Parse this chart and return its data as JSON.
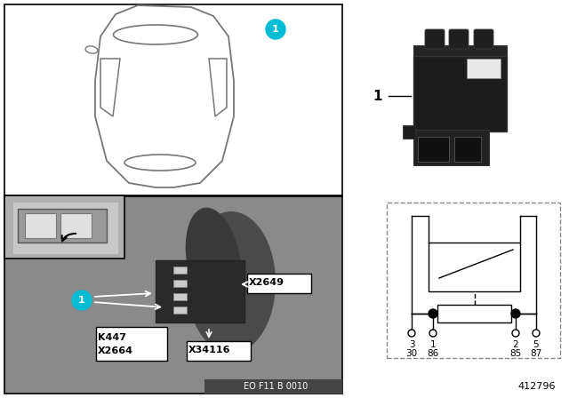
{
  "bg_color": "#ffffff",
  "white": "#ffffff",
  "black": "#000000",
  "photo_gray": "#8a8a8a",
  "photo_dark": "#606060",
  "inset_gray": "#b0b0b0",
  "teal": "#00bcd4",
  "diagram_id": "412796",
  "doc_id": "EO F11 B 0010",
  "pin_labels_top": [
    "3",
    "1",
    "2",
    "5"
  ],
  "pin_labels_bot": [
    "30",
    "86",
    "85",
    "87"
  ],
  "label_K447": "K447",
  "label_X2664": "X2664",
  "label_X34116": "X34116",
  "label_X2649": "X2649",
  "car_color": "#777777",
  "relay_dark": "#1c1c1c",
  "relay_mid": "#2a2a2a",
  "relay_slot": "#111111"
}
